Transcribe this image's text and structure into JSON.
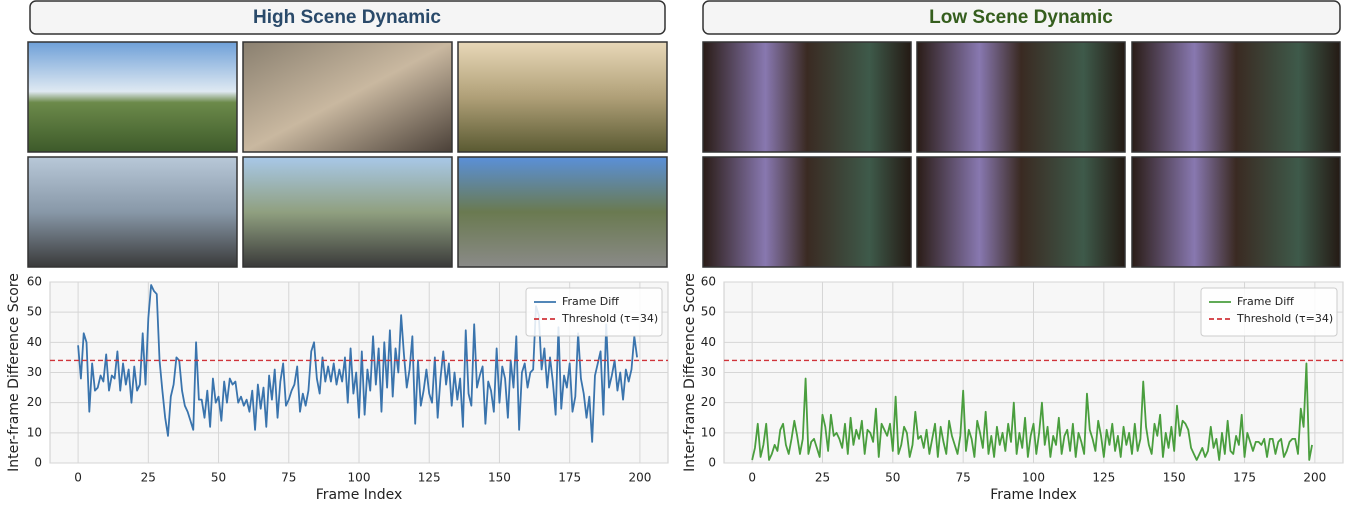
{
  "chart_data": [
    {
      "type": "line",
      "title": "High Scene Dynamic",
      "title_color": "#2a4a6a",
      "xlabel": "Frame Index",
      "ylabel": "Inter-frame Difference Score",
      "x": [
        0,
        1,
        2,
        3,
        4,
        5,
        6,
        7,
        8,
        9,
        10,
        11,
        12,
        13,
        14,
        15,
        16,
        17,
        18,
        19,
        20,
        21,
        22,
        23,
        24,
        25,
        26,
        27,
        28,
        29,
        30,
        31,
        32,
        33,
        34,
        35,
        36,
        37,
        38,
        39,
        40,
        41,
        42,
        43,
        44,
        45,
        46,
        47,
        48,
        49,
        50,
        51,
        52,
        53,
        54,
        55,
        56,
        57,
        58,
        59,
        60,
        61,
        62,
        63,
        64,
        65,
        66,
        67,
        68,
        69,
        70,
        71,
        72,
        73,
        74,
        75,
        76,
        77,
        78,
        79,
        80,
        81,
        82,
        83,
        84,
        85,
        86,
        87,
        88,
        89,
        90,
        91,
        92,
        93,
        94,
        95,
        96,
        97,
        98,
        99,
        100,
        101,
        102,
        103,
        104,
        105,
        106,
        107,
        108,
        109,
        110,
        111,
        112,
        113,
        114,
        115,
        116,
        117,
        118,
        119,
        120,
        121,
        122,
        123,
        124,
        125,
        126,
        127,
        128,
        129,
        130,
        131,
        132,
        133,
        134,
        135,
        136,
        137,
        138,
        139,
        140,
        141,
        142,
        143,
        144,
        145,
        146,
        147,
        148,
        149,
        150,
        151,
        152,
        153,
        154,
        155,
        156,
        157,
        158,
        159,
        160,
        161,
        162,
        163,
        164,
        165,
        166,
        167,
        168,
        169,
        170,
        171,
        172,
        173,
        174,
        175,
        176,
        177,
        178,
        179,
        180,
        181,
        182,
        183,
        184,
        185,
        186,
        187,
        188,
        189,
        190,
        191,
        192,
        193,
        194,
        195,
        196,
        197,
        198,
        199
      ],
      "series": [
        {
          "name": "Frame Diff",
          "color": "#3a74ad",
          "values": [
            39,
            28,
            43,
            40,
            17,
            33,
            24,
            25,
            29,
            27,
            36,
            24,
            29,
            28,
            37,
            24,
            33,
            26,
            31,
            20,
            32,
            24,
            26,
            43,
            26,
            48,
            59,
            57,
            56,
            34,
            24,
            15,
            9,
            22,
            26,
            35,
            34,
            24,
            19,
            17,
            14,
            11,
            40,
            21,
            21,
            15,
            24,
            12,
            28,
            20,
            22,
            14,
            27,
            20,
            28,
            26,
            27,
            20,
            22,
            19,
            21,
            17,
            24,
            11,
            26,
            18,
            25,
            12,
            29,
            21,
            31,
            15,
            27,
            33,
            19,
            21,
            24,
            26,
            32,
            17,
            23,
            19,
            24,
            37,
            40,
            28,
            23,
            35,
            27,
            32,
            27,
            33,
            26,
            31,
            27,
            35,
            20,
            38,
            23,
            30,
            15,
            37,
            16,
            31,
            24,
            42,
            26,
            38,
            17,
            40,
            25,
            44,
            22,
            38,
            30,
            49,
            36,
            25,
            31,
            42,
            13,
            34,
            19,
            24,
            31,
            23,
            20,
            35,
            15,
            28,
            37,
            26,
            33,
            19,
            30,
            21,
            28,
            12,
            44,
            23,
            19,
            46,
            25,
            29,
            32,
            13,
            27,
            24,
            17,
            38,
            20,
            32,
            28,
            15,
            34,
            25,
            42,
            11,
            30,
            33,
            25,
            30,
            31,
            52,
            49,
            31,
            38,
            25,
            35,
            27,
            16,
            45,
            18,
            29,
            25,
            33,
            17,
            22,
            43,
            28,
            23,
            15,
            22,
            7,
            29,
            33,
            37,
            16,
            46,
            25,
            29,
            34,
            24,
            30,
            21,
            31,
            27,
            31,
            42,
            35
          ]
        },
        {
          "name": "Threshold (τ=34)",
          "color": "#d0343a",
          "style": "dashed",
          "value": 34
        }
      ],
      "xlim": [
        -10,
        210
      ],
      "xticks": [
        0,
        25,
        50,
        75,
        100,
        125,
        150,
        175,
        200
      ],
      "ylim": [
        0,
        60
      ],
      "yticks": [
        0,
        10,
        20,
        30,
        40,
        50,
        60
      ],
      "grid": true,
      "legend": "upper right"
    },
    {
      "type": "line",
      "title": "Low Scene Dynamic",
      "title_color": "#355e1e",
      "xlabel": "Frame Index",
      "ylabel": "Inter-frame Difference Score",
      "x": [
        0,
        1,
        2,
        3,
        4,
        5,
        6,
        7,
        8,
        9,
        10,
        11,
        12,
        13,
        14,
        15,
        16,
        17,
        18,
        19,
        20,
        21,
        22,
        23,
        24,
        25,
        26,
        27,
        28,
        29,
        30,
        31,
        32,
        33,
        34,
        35,
        36,
        37,
        38,
        39,
        40,
        41,
        42,
        43,
        44,
        45,
        46,
        47,
        48,
        49,
        50,
        51,
        52,
        53,
        54,
        55,
        56,
        57,
        58,
        59,
        60,
        61,
        62,
        63,
        64,
        65,
        66,
        67,
        68,
        69,
        70,
        71,
        72,
        73,
        74,
        75,
        76,
        77,
        78,
        79,
        80,
        81,
        82,
        83,
        84,
        85,
        86,
        87,
        88,
        89,
        90,
        91,
        92,
        93,
        94,
        95,
        96,
        97,
        98,
        99,
        100,
        101,
        102,
        103,
        104,
        105,
        106,
        107,
        108,
        109,
        110,
        111,
        112,
        113,
        114,
        115,
        116,
        117,
        118,
        119,
        120,
        121,
        122,
        123,
        124,
        125,
        126,
        127,
        128,
        129,
        130,
        131,
        132,
        133,
        134,
        135,
        136,
        137,
        138,
        139,
        140,
        141,
        142,
        143,
        144,
        145,
        146,
        147,
        148,
        149,
        150,
        151,
        152,
        153,
        154,
        155,
        156,
        157,
        158,
        159,
        160,
        161,
        162,
        163,
        164,
        165,
        166,
        167,
        168,
        169,
        170,
        171,
        172,
        173,
        174,
        175,
        176,
        177,
        178,
        179,
        180,
        181,
        182,
        183,
        184,
        185,
        186,
        187,
        188,
        189,
        190,
        191,
        192,
        193,
        194,
        195,
        196,
        197,
        198,
        199
      ],
      "series": [
        {
          "name": "Frame Diff",
          "color": "#4a9e3e",
          "values": [
            1,
            5,
            13,
            2,
            6,
            13,
            1,
            3,
            6,
            4,
            11,
            13,
            6,
            3,
            8,
            14,
            9,
            3,
            8,
            28,
            3,
            7,
            8,
            5,
            2,
            16,
            12,
            4,
            16,
            9,
            10,
            8,
            5,
            13,
            3,
            15,
            6,
            11,
            8,
            14,
            3,
            11,
            10,
            7,
            18,
            2,
            13,
            11,
            9,
            13,
            4,
            22,
            3,
            6,
            12,
            10,
            2,
            6,
            17,
            8,
            9,
            5,
            11,
            3,
            8,
            13,
            2,
            12,
            7,
            3,
            14,
            9,
            6,
            3,
            9,
            24,
            4,
            11,
            8,
            2,
            14,
            10,
            5,
            17,
            3,
            9,
            2,
            12,
            6,
            10,
            4,
            13,
            7,
            20,
            3,
            10,
            5,
            15,
            2,
            9,
            13,
            3,
            10,
            20,
            6,
            12,
            2,
            9,
            6,
            15,
            3,
            9,
            11,
            4,
            13,
            2,
            10,
            7,
            3,
            23,
            11,
            8,
            4,
            14,
            9,
            2,
            11,
            6,
            13,
            4,
            9,
            2,
            12,
            6,
            10,
            3,
            13,
            4,
            8,
            27,
            12,
            6,
            3,
            13,
            9,
            16,
            2,
            10,
            5,
            12,
            4,
            19,
            9,
            14,
            13,
            11,
            5,
            3,
            1,
            3,
            5,
            2,
            4,
            12,
            5,
            8,
            1,
            10,
            3,
            14,
            4,
            3,
            9,
            6,
            16,
            2,
            10,
            7,
            4,
            7,
            7,
            6,
            8,
            2,
            8,
            8,
            3,
            7,
            8,
            2,
            4,
            7,
            8,
            8,
            3,
            18,
            12,
            33,
            1,
            6
          ]
        },
        {
          "name": "Threshold (τ=34)",
          "color": "#d0343a",
          "style": "dashed",
          "value": 34
        }
      ],
      "xlim": [
        -10,
        210
      ],
      "xticks": [
        0,
        25,
        50,
        75,
        100,
        125,
        150,
        175,
        200
      ],
      "ylim": [
        0,
        60
      ],
      "yticks": [
        0,
        10,
        20,
        30,
        40,
        50,
        60
      ],
      "grid": true,
      "legend": "upper right"
    }
  ]
}
